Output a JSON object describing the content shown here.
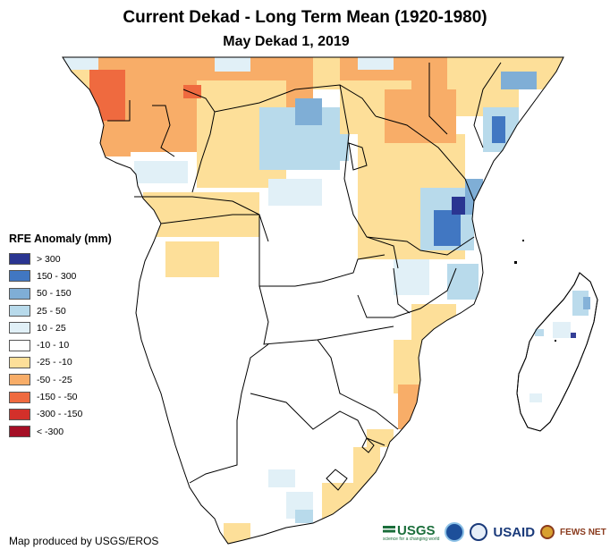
{
  "title": "Current Dekad - Long Term Mean (1920-1980)",
  "subtitle": "May Dekad 1, 2019",
  "legend": {
    "title": "RFE Anomaly (mm)",
    "items": [
      {
        "label": "> 300",
        "color": "#2a3591"
      },
      {
        "label": "150 - 300",
        "color": "#4177c2"
      },
      {
        "label": "50 - 150",
        "color": "#7faed6"
      },
      {
        "label": "25 - 50",
        "color": "#b8daeb"
      },
      {
        "label": "10 - 25",
        "color": "#e1f0f7"
      },
      {
        "label": "-10 - 10",
        "color": "#ffffff"
      },
      {
        "label": "-25 - -10",
        "color": "#fddf99"
      },
      {
        "label": "-50 - -25",
        "color": "#f8ad68"
      },
      {
        "label": "-150 - -50",
        "color": "#ef6a3f"
      },
      {
        "label": "-300 - -150",
        "color": "#d3302a"
      },
      {
        "label": "< -300",
        "color": "#a50f26"
      }
    ]
  },
  "credit": "Map produced by USGS/EROS",
  "logos": {
    "usgs": "USGS",
    "usgs_tagline": "science for a changing world",
    "noaa": "noaa-logo",
    "usaid": "USAID",
    "fews": "FEWS NET"
  }
}
